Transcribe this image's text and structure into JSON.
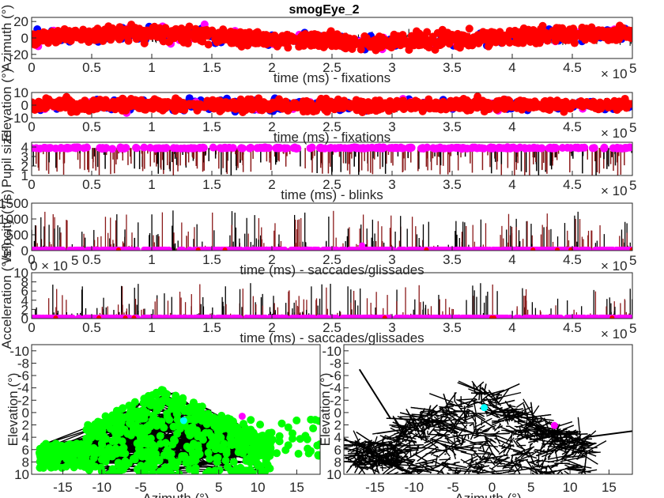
{
  "figure": {
    "title": "smogEye_2",
    "colors": {
      "axis": "#262626",
      "red": "#ff0000",
      "blue": "#0000ff",
      "magenta": "#ff00ff",
      "green": "#00ff00",
      "cyan": "#00ffff",
      "black": "#000000",
      "darkred": "#8b1a1a"
    }
  },
  "chart_data": [
    {
      "id": "azimuth",
      "type": "scatter",
      "xlabel": "time (ms) - fixations",
      "ylabel": "Azimuth (°)",
      "x_exponent": "× 10^5",
      "xlim": [
        0,
        500000
      ],
      "ylim": [
        -25,
        25
      ],
      "x_ticks": [
        "0",
        "0.5",
        "1",
        "1.5",
        "2",
        "2.5",
        "3",
        "3.5",
        "4",
        "4.5"
      ],
      "y_ticks": [
        "-20",
        "0",
        "20"
      ],
      "series": [
        {
          "color": "red",
          "description_values": {
            "y_range": [
              -20,
              20
            ]
          }
        },
        {
          "color": "blue",
          "description_values": {
            "y_range": [
              -20,
              20
            ]
          }
        },
        {
          "color": "magenta",
          "description_values": {
            "y_range": [
              -20,
              20
            ]
          }
        }
      ]
    },
    {
      "id": "elevation",
      "type": "scatter",
      "xlabel": "time (ms) - fixations",
      "ylabel": "Elevation (°)",
      "x_exponent": "× 10^5",
      "xlim": [
        0,
        500000
      ],
      "ylim": [
        -10,
        10
      ],
      "x_ticks": [
        "0",
        "0.5",
        "1",
        "1.5",
        "2",
        "2.5",
        "3",
        "3.5",
        "4",
        "4.5"
      ],
      "y_ticks": [
        "-10",
        "0",
        "10"
      ],
      "series": [
        {
          "color": "red"
        },
        {
          "color": "blue"
        },
        {
          "color": "magenta"
        }
      ]
    },
    {
      "id": "pupil",
      "type": "line",
      "xlabel": "time (ms) - blinks",
      "ylabel": "Pupil size",
      "x_exponent": "× 10^5",
      "xlim": [
        0,
        500000
      ],
      "ylim": [
        1,
        4.5
      ],
      "x_ticks": [
        "0",
        "0.5",
        "1",
        "1.5",
        "2",
        "2.5",
        "3",
        "3.5",
        "4",
        "4.5"
      ],
      "y_ticks": [
        "1",
        "2",
        "3",
        "4"
      ],
      "series": [
        {
          "color": "darkred"
        },
        {
          "color": "magenta"
        }
      ]
    },
    {
      "id": "velocity",
      "type": "line",
      "xlabel": "time (ms) - saccades/glissades",
      "ylabel": "Velocity (°/s)",
      "x_exponent": "× 10^5",
      "xlim": [
        0,
        500000
      ],
      "ylim": [
        0,
        1500
      ],
      "x_ticks": [
        "0",
        "0.5",
        "1",
        "1.5",
        "2",
        "2.5",
        "3",
        "3.5",
        "4",
        "4.5"
      ],
      "y_ticks": [
        "0",
        "500",
        "1000",
        "1500"
      ],
      "series": [
        {
          "color": "darkred"
        },
        {
          "color": "magenta"
        }
      ]
    },
    {
      "id": "acceleration",
      "type": "line",
      "xlabel": "time (ms) - saccades/glissades",
      "ylabel": "Acceleration (°/s²)",
      "x_exponent": "× 10^5",
      "y_exponent": "× 10^5",
      "xlim": [
        0,
        500000
      ],
      "ylim": [
        0,
        1000000
      ],
      "x_ticks": [
        "0",
        "0.5",
        "1",
        "1.5",
        "2",
        "2.5",
        "3",
        "3.5",
        "4",
        "4.5"
      ],
      "y_ticks": [
        "0",
        "2",
        "4",
        "6",
        "8",
        "10"
      ],
      "series": [
        {
          "color": "darkred"
        },
        {
          "color": "magenta"
        }
      ]
    },
    {
      "id": "scan-fixations",
      "type": "scatter",
      "xlabel": "Azimuth (°)",
      "ylabel": "Elevation (°)",
      "xlim": [
        -19,
        18
      ],
      "ylim": [
        10,
        -11
      ],
      "x_ticks": [
        "-15",
        "-10",
        "-5",
        "0",
        "5",
        "10",
        "15"
      ],
      "y_ticks": [
        "-10",
        "-8",
        "-6",
        "-4",
        "-2",
        "0",
        "2",
        "4",
        "6",
        "8",
        "10"
      ],
      "markers": [
        {
          "color": "cyan",
          "x": 0.5,
          "y": 1.3
        },
        {
          "color": "magenta",
          "x": 8,
          "y": 0.6
        }
      ]
    },
    {
      "id": "scan-raw",
      "type": "line",
      "xlabel": "Azimuth (°)",
      "ylabel": "Elevation (°)",
      "xlim": [
        -19,
        18
      ],
      "ylim": [
        10,
        -11
      ],
      "x_ticks": [
        "-15",
        "-10",
        "-5",
        "0",
        "5",
        "10",
        "15"
      ],
      "y_ticks": [
        "-10",
        "-8",
        "-6",
        "-4",
        "-2",
        "0",
        "2",
        "4",
        "6",
        "8",
        "10"
      ],
      "markers": [
        {
          "color": "cyan",
          "x": -1,
          "y": -0.8
        },
        {
          "color": "magenta",
          "x": 8,
          "y": 2.1
        }
      ]
    }
  ]
}
